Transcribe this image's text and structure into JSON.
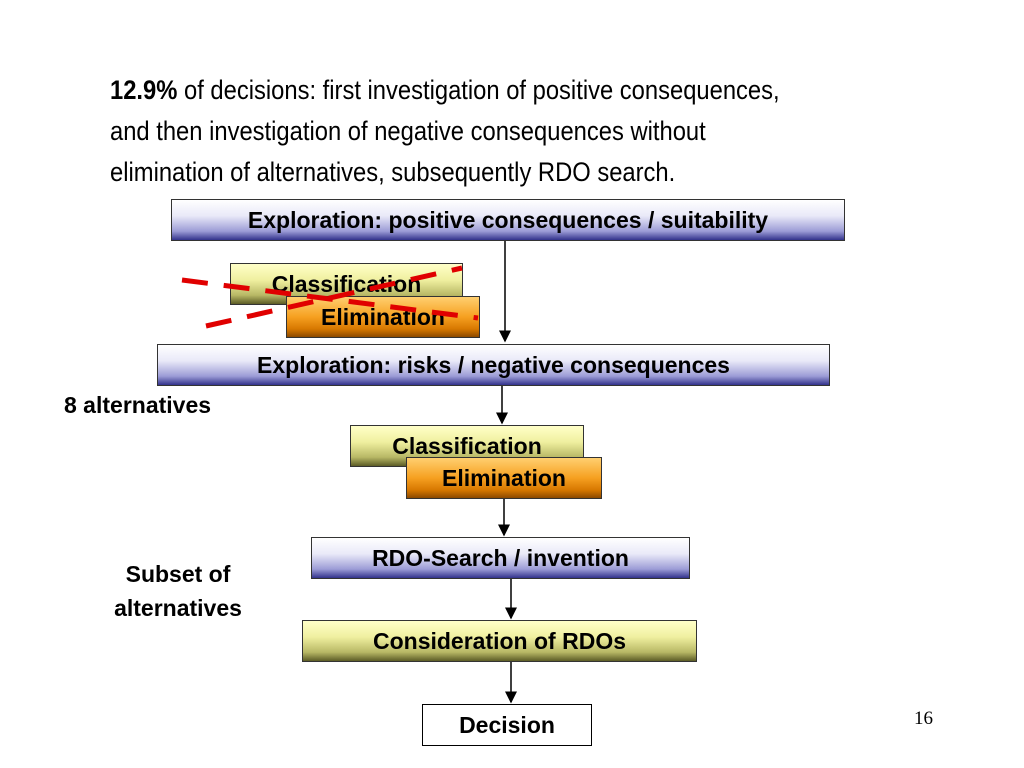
{
  "intro": {
    "highlight": "12.9%",
    "line1_rest": " of decisions: first investigation of positive consequences,",
    "line2": "and then investigation of negative consequences without",
    "line3": "elimination of alternatives, subsequently RDO search."
  },
  "flow": {
    "exploration_positive": "Exploration: positive consequences / suitability",
    "classification_crossed": "Classification",
    "elimination_crossed": "Elimination",
    "exploration_risks": "Exploration: risks / negative consequences",
    "classification": "Classification",
    "elimination": "Elimination",
    "rdo_search": "RDO-Search / invention",
    "consideration": "Consideration of RDOs",
    "decision": "Decision"
  },
  "labels": {
    "eight_alternatives": "8 alternatives",
    "subset_line1": "Subset of",
    "subset_line2": "alternatives"
  },
  "page_number": "16",
  "colors": {
    "strike": "#e00000",
    "blue_box_bottom": "#32328c",
    "olive_box_bottom": "#5c5c26",
    "orange_box": "#f6a020"
  }
}
